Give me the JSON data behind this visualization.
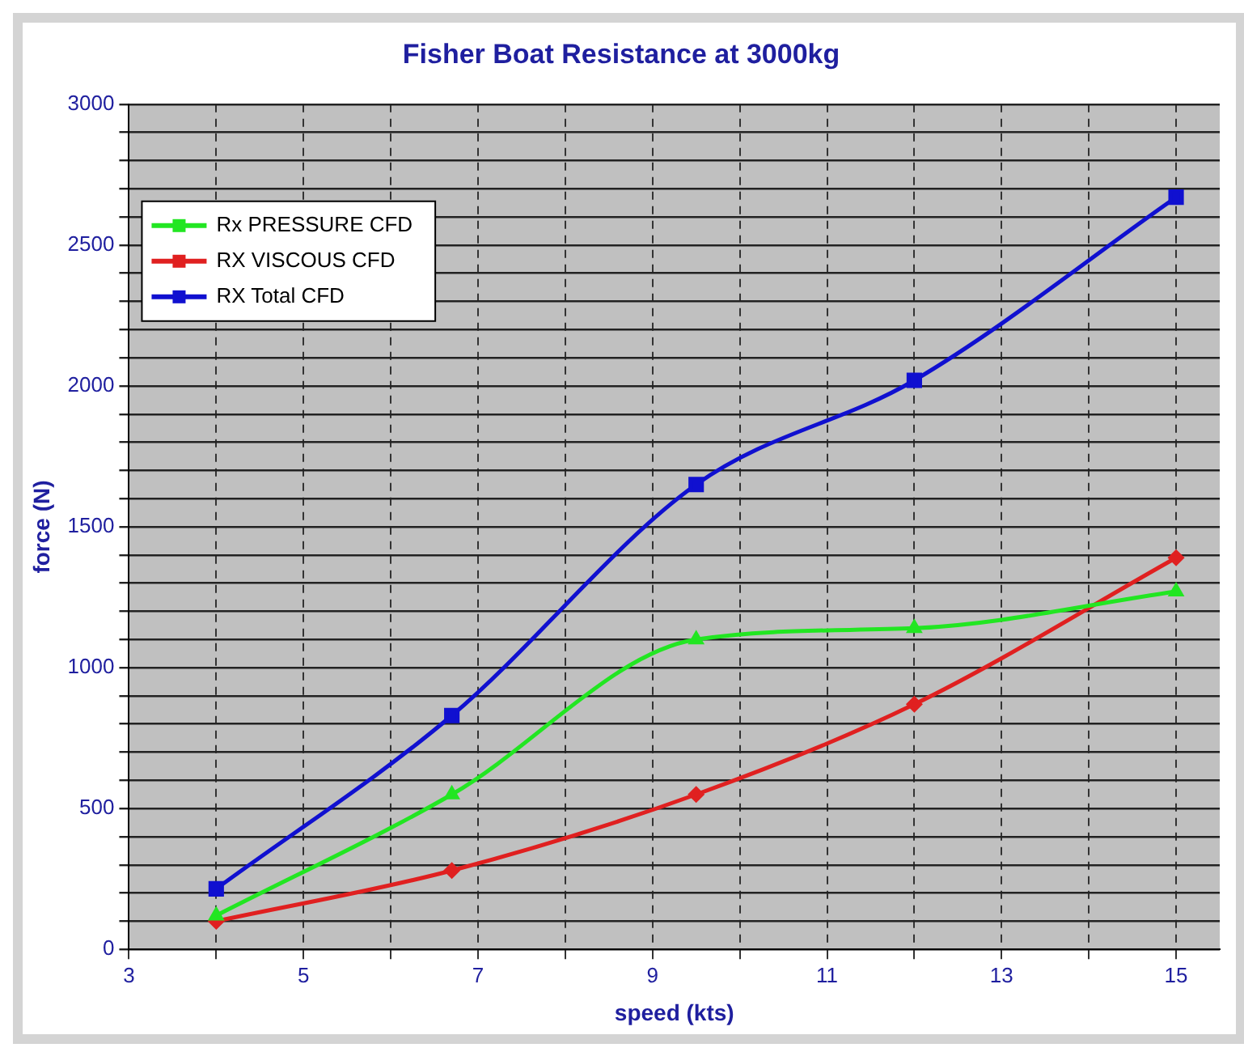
{
  "chart_data": {
    "type": "line",
    "title": "Fisher Boat Resistance at 3000kg",
    "xlabel": "speed (kts)",
    "ylabel": "force (N)",
    "xlim": [
      3,
      15.5
    ],
    "xticks": [
      3,
      {
        "value": 4,
        "label": null
      },
      5,
      {
        "value": 6,
        "label": null
      },
      7,
      {
        "value": 8,
        "label": null
      },
      9,
      {
        "value": 10,
        "label": null
      },
      11,
      {
        "value": 12,
        "label": null
      },
      13,
      {
        "value": 14,
        "label": null
      },
      15
    ],
    "ylim": [
      0,
      3000
    ],
    "yticks": [
      0,
      {
        "value": 100,
        "label": null
      },
      {
        "value": 200,
        "label": null
      },
      {
        "value": 300,
        "label": null
      },
      {
        "value": 400,
        "label": null
      },
      500,
      {
        "value": 600,
        "label": null
      },
      {
        "value": 700,
        "label": null
      },
      {
        "value": 800,
        "label": null
      },
      {
        "value": 900,
        "label": null
      },
      1000,
      {
        "value": 1100,
        "label": null
      },
      {
        "value": 1200,
        "label": null
      },
      {
        "value": 1300,
        "label": null
      },
      {
        "value": 1400,
        "label": null
      },
      1500,
      {
        "value": 1600,
        "label": null
      },
      {
        "value": 1700,
        "label": null
      },
      {
        "value": 1800,
        "label": null
      },
      {
        "value": 1900,
        "label": null
      },
      2000,
      {
        "value": 2100,
        "label": null
      },
      {
        "value": 2200,
        "label": null
      },
      {
        "value": 2300,
        "label": null
      },
      {
        "value": 2400,
        "label": null
      },
      2500,
      {
        "value": 2600,
        "label": null
      },
      {
        "value": 2700,
        "label": null
      },
      {
        "value": 2800,
        "label": null
      },
      {
        "value": 2900,
        "label": null
      },
      3000
    ],
    "grid": true,
    "legend": "top left",
    "series": [
      {
        "name": "Rx PRESSURE CFD",
        "color": "#22e622",
        "marker": "triangle",
        "x": [
          4,
          6.7,
          9.5,
          12,
          15
        ],
        "values": [
          120,
          550,
          1100,
          1140,
          1270
        ]
      },
      {
        "name": "RX VISCOUS CFD",
        "color": "#e02020",
        "marker": "diamond",
        "x": [
          4,
          6.7,
          9.5,
          12,
          15
        ],
        "values": [
          100,
          280,
          550,
          870,
          1390
        ]
      },
      {
        "name": "RX Total CFD",
        "color": "#1010d0",
        "marker": "square",
        "x": [
          4,
          6.7,
          9.5,
          12,
          15
        ],
        "values": [
          215,
          830,
          1650,
          2020,
          2670
        ]
      }
    ]
  }
}
